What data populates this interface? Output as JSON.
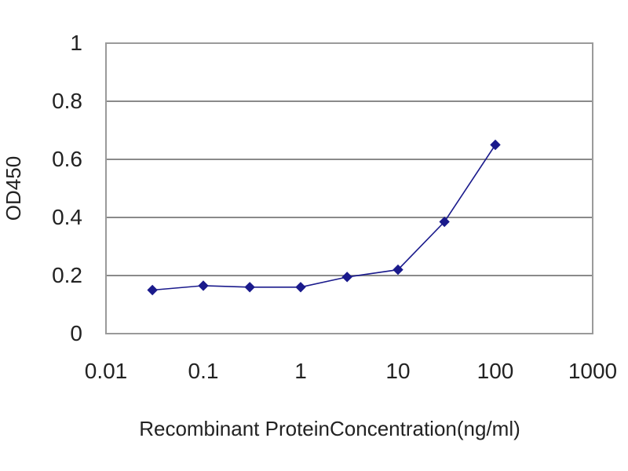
{
  "chart_data": {
    "type": "line",
    "xlabel": "Recombinant ProteinConcentration(ng/ml)",
    "ylabel": "OD450",
    "x_scale": "log",
    "xlim": [
      0.01,
      1000
    ],
    "ylim": [
      0,
      1
    ],
    "x_ticks": [
      0.01,
      0.1,
      1,
      10,
      100,
      1000
    ],
    "x_tick_labels": [
      "0.01",
      "0.1",
      "1",
      "10",
      "100",
      "1000"
    ],
    "y_ticks": [
      0,
      0.2,
      0.4,
      0.6,
      0.8,
      1
    ],
    "y_tick_labels": [
      "0",
      "0.2",
      "0.4",
      "0.6",
      "0.8",
      "1"
    ],
    "grid": "horizontal",
    "legend": "none",
    "series_color": "#1a1a8c",
    "series": [
      {
        "x": [
          0.03,
          0.1,
          0.3,
          1,
          3,
          10,
          30,
          100
        ],
        "values": [
          0.15,
          0.165,
          0.16,
          0.16,
          0.195,
          0.22,
          0.385,
          0.65
        ]
      }
    ]
  }
}
